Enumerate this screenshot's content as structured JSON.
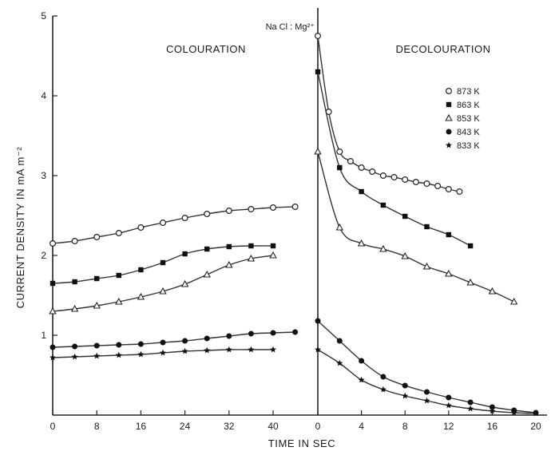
{
  "chart_data": {
    "type": "scatter",
    "title": "",
    "electrolyte_label": "Na Cl : Mg²⁺",
    "xlabel": "TIME IN SEC",
    "ylabel": "CURRENT DENSITY IN mA m⁻²",
    "ylim": [
      0,
      5
    ],
    "y_ticks": [
      1,
      2,
      3,
      4,
      5
    ],
    "y_tick_labels": [
      "1",
      "2",
      "3",
      "4",
      "5"
    ],
    "legend_position": "top-right of decolouration panel",
    "panels": [
      {
        "name": "COLOURATION",
        "xlim": [
          0,
          48
        ],
        "x_ticks": [
          0,
          8,
          16,
          24,
          32,
          40
        ],
        "x_tick_labels": [
          "0",
          "8",
          "16",
          "24",
          "32",
          "40"
        ],
        "series": [
          {
            "name": "873 K",
            "marker": "open-circle",
            "x": [
              0,
              4,
              8,
              12,
              16,
              20,
              24,
              28,
              32,
              36,
              40,
              44
            ],
            "y": [
              2.15,
              2.18,
              2.23,
              2.28,
              2.35,
              2.41,
              2.47,
              2.52,
              2.56,
              2.58,
              2.6,
              2.61
            ]
          },
          {
            "name": "863 K",
            "marker": "filled-square",
            "x": [
              0,
              4,
              8,
              12,
              16,
              20,
              24,
              28,
              32,
              36,
              40
            ],
            "y": [
              1.65,
              1.67,
              1.71,
              1.75,
              1.82,
              1.91,
              2.02,
              2.08,
              2.11,
              2.12,
              2.12
            ]
          },
          {
            "name": "853 K",
            "marker": "open-triangle",
            "x": [
              0,
              4,
              8,
              12,
              16,
              20,
              24,
              28,
              32,
              36,
              40
            ],
            "y": [
              1.3,
              1.33,
              1.37,
              1.42,
              1.48,
              1.55,
              1.64,
              1.76,
              1.88,
              1.96,
              2.0
            ]
          },
          {
            "name": "843 K",
            "marker": "filled-circle",
            "x": [
              0,
              4,
              8,
              12,
              16,
              20,
              24,
              28,
              32,
              36,
              40,
              44
            ],
            "y": [
              0.85,
              0.86,
              0.87,
              0.88,
              0.89,
              0.91,
              0.93,
              0.96,
              0.99,
              1.02,
              1.03,
              1.04
            ]
          },
          {
            "name": "833 K",
            "marker": "filled-star",
            "x": [
              0,
              4,
              8,
              12,
              16,
              20,
              24,
              28,
              32,
              36,
              40
            ],
            "y": [
              0.72,
              0.73,
              0.74,
              0.75,
              0.76,
              0.78,
              0.8,
              0.81,
              0.82,
              0.82,
              0.82
            ]
          }
        ]
      },
      {
        "name": "DECOLOURATION",
        "xlim": [
          0,
          21
        ],
        "x_ticks": [
          0,
          4,
          8,
          12,
          16,
          20
        ],
        "x_tick_labels": [
          "0",
          "4",
          "8",
          "12",
          "16",
          "20"
        ],
        "series": [
          {
            "name": "873 K",
            "marker": "open-circle",
            "x": [
              0,
              1,
              2,
              3,
              4,
              5,
              6,
              7,
              8,
              9,
              10,
              11,
              12,
              13
            ],
            "y": [
              4.75,
              3.8,
              3.3,
              3.18,
              3.1,
              3.05,
              3.0,
              2.98,
              2.95,
              2.92,
              2.9,
              2.87,
              2.83,
              2.8
            ]
          },
          {
            "name": "863 K",
            "marker": "filled-square",
            "x": [
              0,
              2,
              4,
              6,
              8,
              10,
              12,
              14
            ],
            "y": [
              4.3,
              3.1,
              2.8,
              2.63,
              2.49,
              2.36,
              2.26,
              2.12
            ]
          },
          {
            "name": "853 K",
            "marker": "open-triangle",
            "x": [
              0,
              2,
              4,
              6,
              8,
              10,
              12,
              14,
              16,
              18
            ],
            "y": [
              3.3,
              2.35,
              2.15,
              2.08,
              1.99,
              1.86,
              1.77,
              1.66,
              1.55,
              1.42
            ]
          },
          {
            "name": "843 K",
            "marker": "filled-circle",
            "x": [
              0,
              2,
              4,
              6,
              8,
              10,
              12,
              14,
              16,
              18,
              20
            ],
            "y": [
              1.18,
              0.93,
              0.68,
              0.48,
              0.37,
              0.29,
              0.22,
              0.16,
              0.1,
              0.06,
              0.03
            ]
          },
          {
            "name": "833 K",
            "marker": "filled-star",
            "x": [
              0,
              2,
              4,
              6,
              8,
              10,
              12,
              14,
              16,
              18,
              20
            ],
            "y": [
              0.82,
              0.65,
              0.44,
              0.32,
              0.24,
              0.18,
              0.12,
              0.08,
              0.05,
              0.03,
              0.02
            ]
          }
        ]
      }
    ],
    "legend": [
      "873 K",
      "863 K",
      "853 K",
      "843 K",
      "833 K"
    ]
  }
}
